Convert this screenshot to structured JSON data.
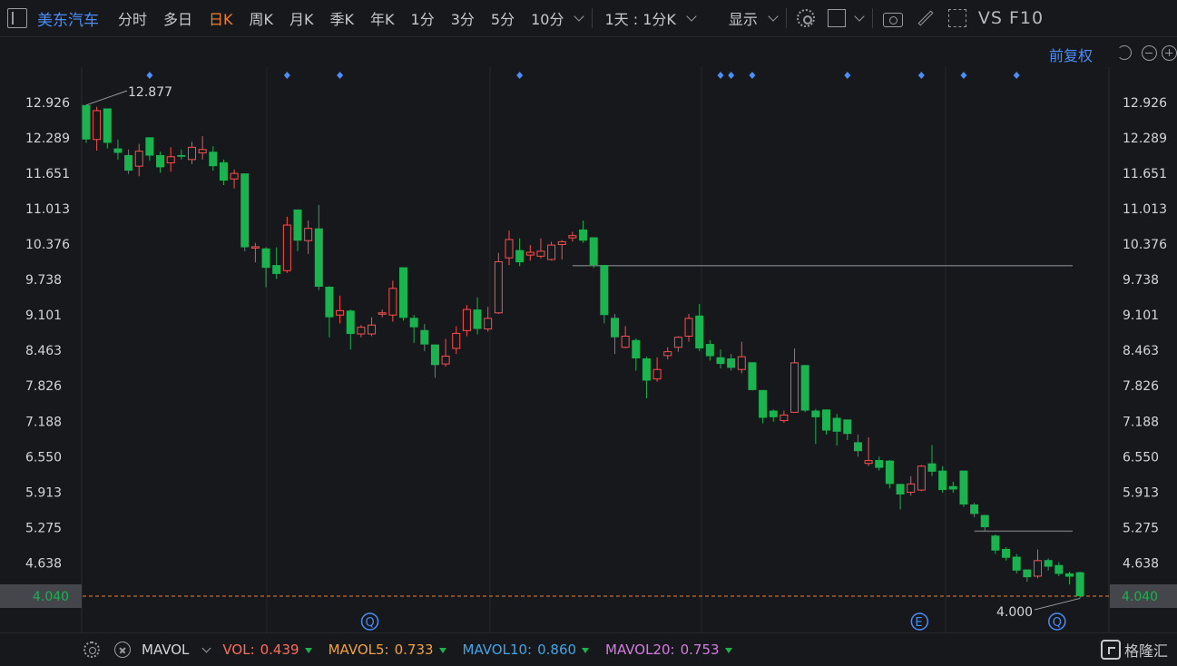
{
  "toolbar": {
    "stock_name": "美东汽车",
    "tabs": [
      "分时",
      "多日",
      "日K",
      "周K",
      "月K",
      "季K",
      "年K",
      "1分",
      "3分",
      "5分",
      "10分"
    ],
    "active_tab": "日K",
    "period_select": "1天 : 1分K",
    "display_label": "显示",
    "vs_f10": "VS F10"
  },
  "subheader": {
    "adjust_label": "前复权"
  },
  "colors": {
    "up": "#ff4d4d",
    "down": "#1ab350",
    "accent": "#4c8df6",
    "active_tab": "#f1802d",
    "last_price": "#f1802d"
  },
  "chart_data": {
    "type": "candlestick",
    "y_ticks": [
      "12.926",
      "12.289",
      "11.651",
      "11.013",
      "10.376",
      "9.738",
      "9.101",
      "8.463",
      "7.826",
      "7.188",
      "6.550",
      "5.913",
      "5.275",
      "4.638"
    ],
    "ylim": [
      4.04,
      12.926
    ],
    "last_price": "4.040",
    "high_label": "12.877",
    "low_label": "4.000",
    "ref_lines": [
      {
        "from": 46,
        "value": 9.99
      },
      {
        "from": 84,
        "value": 5.21
      }
    ],
    "candles": [
      [
        12.88,
        12.26,
        12.88,
        12.2
      ],
      [
        12.26,
        12.78,
        12.85,
        12.06
      ],
      [
        12.82,
        12.2,
        12.82,
        12.1
      ],
      [
        12.1,
        12.02,
        12.26,
        11.9
      ],
      [
        11.98,
        11.7,
        12.08,
        11.64
      ],
      [
        11.78,
        12.05,
        12.18,
        11.6
      ],
      [
        12.3,
        11.97,
        12.3,
        11.88
      ],
      [
        11.98,
        11.76,
        12.04,
        11.66
      ],
      [
        11.84,
        11.95,
        12.12,
        11.68
      ],
      [
        11.98,
        11.95,
        12.08,
        11.9
      ],
      [
        11.9,
        12.12,
        12.22,
        11.82
      ],
      [
        12.02,
        12.08,
        12.32,
        11.9
      ],
      [
        12.04,
        11.78,
        12.14,
        11.7
      ],
      [
        11.85,
        11.52,
        11.9,
        11.44
      ],
      [
        11.55,
        11.65,
        11.72,
        11.38
      ],
      [
        11.65,
        10.32,
        11.65,
        10.25
      ],
      [
        10.32,
        10.33,
        10.4,
        10.05
      ],
      [
        10.3,
        9.95,
        10.32,
        9.6
      ],
      [
        10.0,
        9.84,
        10.32,
        9.75
      ],
      [
        9.9,
        10.72,
        10.87,
        9.86
      ],
      [
        11.0,
        10.44,
        11.0,
        10.25
      ],
      [
        10.44,
        10.66,
        10.8,
        10.2
      ],
      [
        10.66,
        9.61,
        11.08,
        9.55
      ],
      [
        9.61,
        9.06,
        9.62,
        8.7
      ],
      [
        9.1,
        9.18,
        9.45,
        8.95
      ],
      [
        9.18,
        8.76,
        9.2,
        8.48
      ],
      [
        8.76,
        8.88,
        8.92,
        8.7
      ],
      [
        8.76,
        8.92,
        9.06,
        8.72
      ],
      [
        9.12,
        9.14,
        9.2,
        9.06
      ],
      [
        9.1,
        9.58,
        9.72,
        8.98
      ],
      [
        9.96,
        9.05,
        9.96,
        9.0
      ],
      [
        9.05,
        8.88,
        9.1,
        8.6
      ],
      [
        8.83,
        8.57,
        8.94,
        8.45
      ],
      [
        8.57,
        8.2,
        8.57,
        7.97
      ],
      [
        8.22,
        8.36,
        8.67,
        8.17
      ],
      [
        8.5,
        8.77,
        8.9,
        8.4
      ],
      [
        8.82,
        9.2,
        9.28,
        8.72
      ],
      [
        9.2,
        8.85,
        9.42,
        8.75
      ],
      [
        8.85,
        9.04,
        9.25,
        8.8
      ],
      [
        9.14,
        10.06,
        10.22,
        9.12
      ],
      [
        10.13,
        10.46,
        10.62,
        10.0
      ],
      [
        10.27,
        10.05,
        10.48,
        9.98
      ],
      [
        10.18,
        10.23,
        10.36,
        10.08
      ],
      [
        10.16,
        10.25,
        10.48,
        10.12
      ],
      [
        10.1,
        10.36,
        10.42,
        10.08
      ],
      [
        10.37,
        10.42,
        10.45,
        10.1
      ],
      [
        10.49,
        10.53,
        10.6,
        10.42
      ],
      [
        10.64,
        10.44,
        10.8,
        10.4
      ],
      [
        10.5,
        10.0,
        10.5,
        9.95
      ],
      [
        10.0,
        9.1,
        10.0,
        8.95
      ],
      [
        9.05,
        8.7,
        9.12,
        8.4
      ],
      [
        8.52,
        8.72,
        8.9,
        8.5
      ],
      [
        8.65,
        8.32,
        8.68,
        8.1
      ],
      [
        8.32,
        7.92,
        8.35,
        7.6
      ],
      [
        7.95,
        8.12,
        8.34,
        7.9
      ],
      [
        8.37,
        8.44,
        8.52,
        8.3
      ],
      [
        8.52,
        8.7,
        8.72,
        8.44
      ],
      [
        8.72,
        9.04,
        9.12,
        8.62
      ],
      [
        9.09,
        8.5,
        9.3,
        8.45
      ],
      [
        8.58,
        8.36,
        8.65,
        8.28
      ],
      [
        8.34,
        8.22,
        8.48,
        8.14
      ],
      [
        8.32,
        8.15,
        8.4,
        8.1
      ],
      [
        8.12,
        8.35,
        8.62,
        8.05
      ],
      [
        8.25,
        7.75,
        8.25,
        7.74
      ],
      [
        7.75,
        7.25,
        7.75,
        7.15
      ],
      [
        7.38,
        7.26,
        7.4,
        7.18
      ],
      [
        7.2,
        7.3,
        7.38,
        7.16
      ],
      [
        7.35,
        8.24,
        8.5,
        7.34
      ],
      [
        8.2,
        7.38,
        8.2,
        7.35
      ],
      [
        7.38,
        7.26,
        7.41,
        6.78
      ],
      [
        7.4,
        7.02,
        7.4,
        6.95
      ],
      [
        7.25,
        7.0,
        7.32,
        6.75
      ],
      [
        7.22,
        6.96,
        7.22,
        6.85
      ],
      [
        6.81,
        6.65,
        6.95,
        6.55
      ],
      [
        6.43,
        6.48,
        6.9,
        6.38
      ],
      [
        6.49,
        6.35,
        6.55,
        6.3
      ],
      [
        6.48,
        6.06,
        6.49,
        5.98
      ],
      [
        6.06,
        5.87,
        6.06,
        5.6
      ],
      [
        5.91,
        6.06,
        6.2,
        5.85
      ],
      [
        5.95,
        6.38,
        6.4,
        5.93
      ],
      [
        6.43,
        6.28,
        6.76,
        6.2
      ],
      [
        6.3,
        5.95,
        6.38,
        5.9
      ],
      [
        6.02,
        5.96,
        6.1,
        5.9
      ],
      [
        6.3,
        5.69,
        6.3,
        5.65
      ],
      [
        5.69,
        5.52,
        5.72,
        5.46
      ],
      [
        5.5,
        5.28,
        5.5,
        5.2
      ],
      [
        5.13,
        4.86,
        5.15,
        4.8
      ],
      [
        4.89,
        4.73,
        4.92,
        4.68
      ],
      [
        4.75,
        4.5,
        4.8,
        4.45
      ],
      [
        4.52,
        4.38,
        4.52,
        4.3
      ],
      [
        4.4,
        4.68,
        4.88,
        4.36
      ],
      [
        4.69,
        4.57,
        4.72,
        4.5
      ],
      [
        4.6,
        4.44,
        4.65,
        4.4
      ],
      [
        4.45,
        4.39,
        4.48,
        4.25
      ],
      [
        4.47,
        4.04,
        4.48,
        4.0
      ]
    ]
  },
  "bottom": {
    "indicator": "MAVOL",
    "vol": {
      "name": "VOL:",
      "value": "0.439"
    },
    "mavol5": {
      "name": "MAVOL5:",
      "value": "0.733"
    },
    "mavol10": {
      "name": "MAVOL10:",
      "value": "0.860"
    },
    "mavol20": {
      "name": "MAVOL20:",
      "value": "0.753"
    },
    "logo_text": "格隆汇"
  }
}
